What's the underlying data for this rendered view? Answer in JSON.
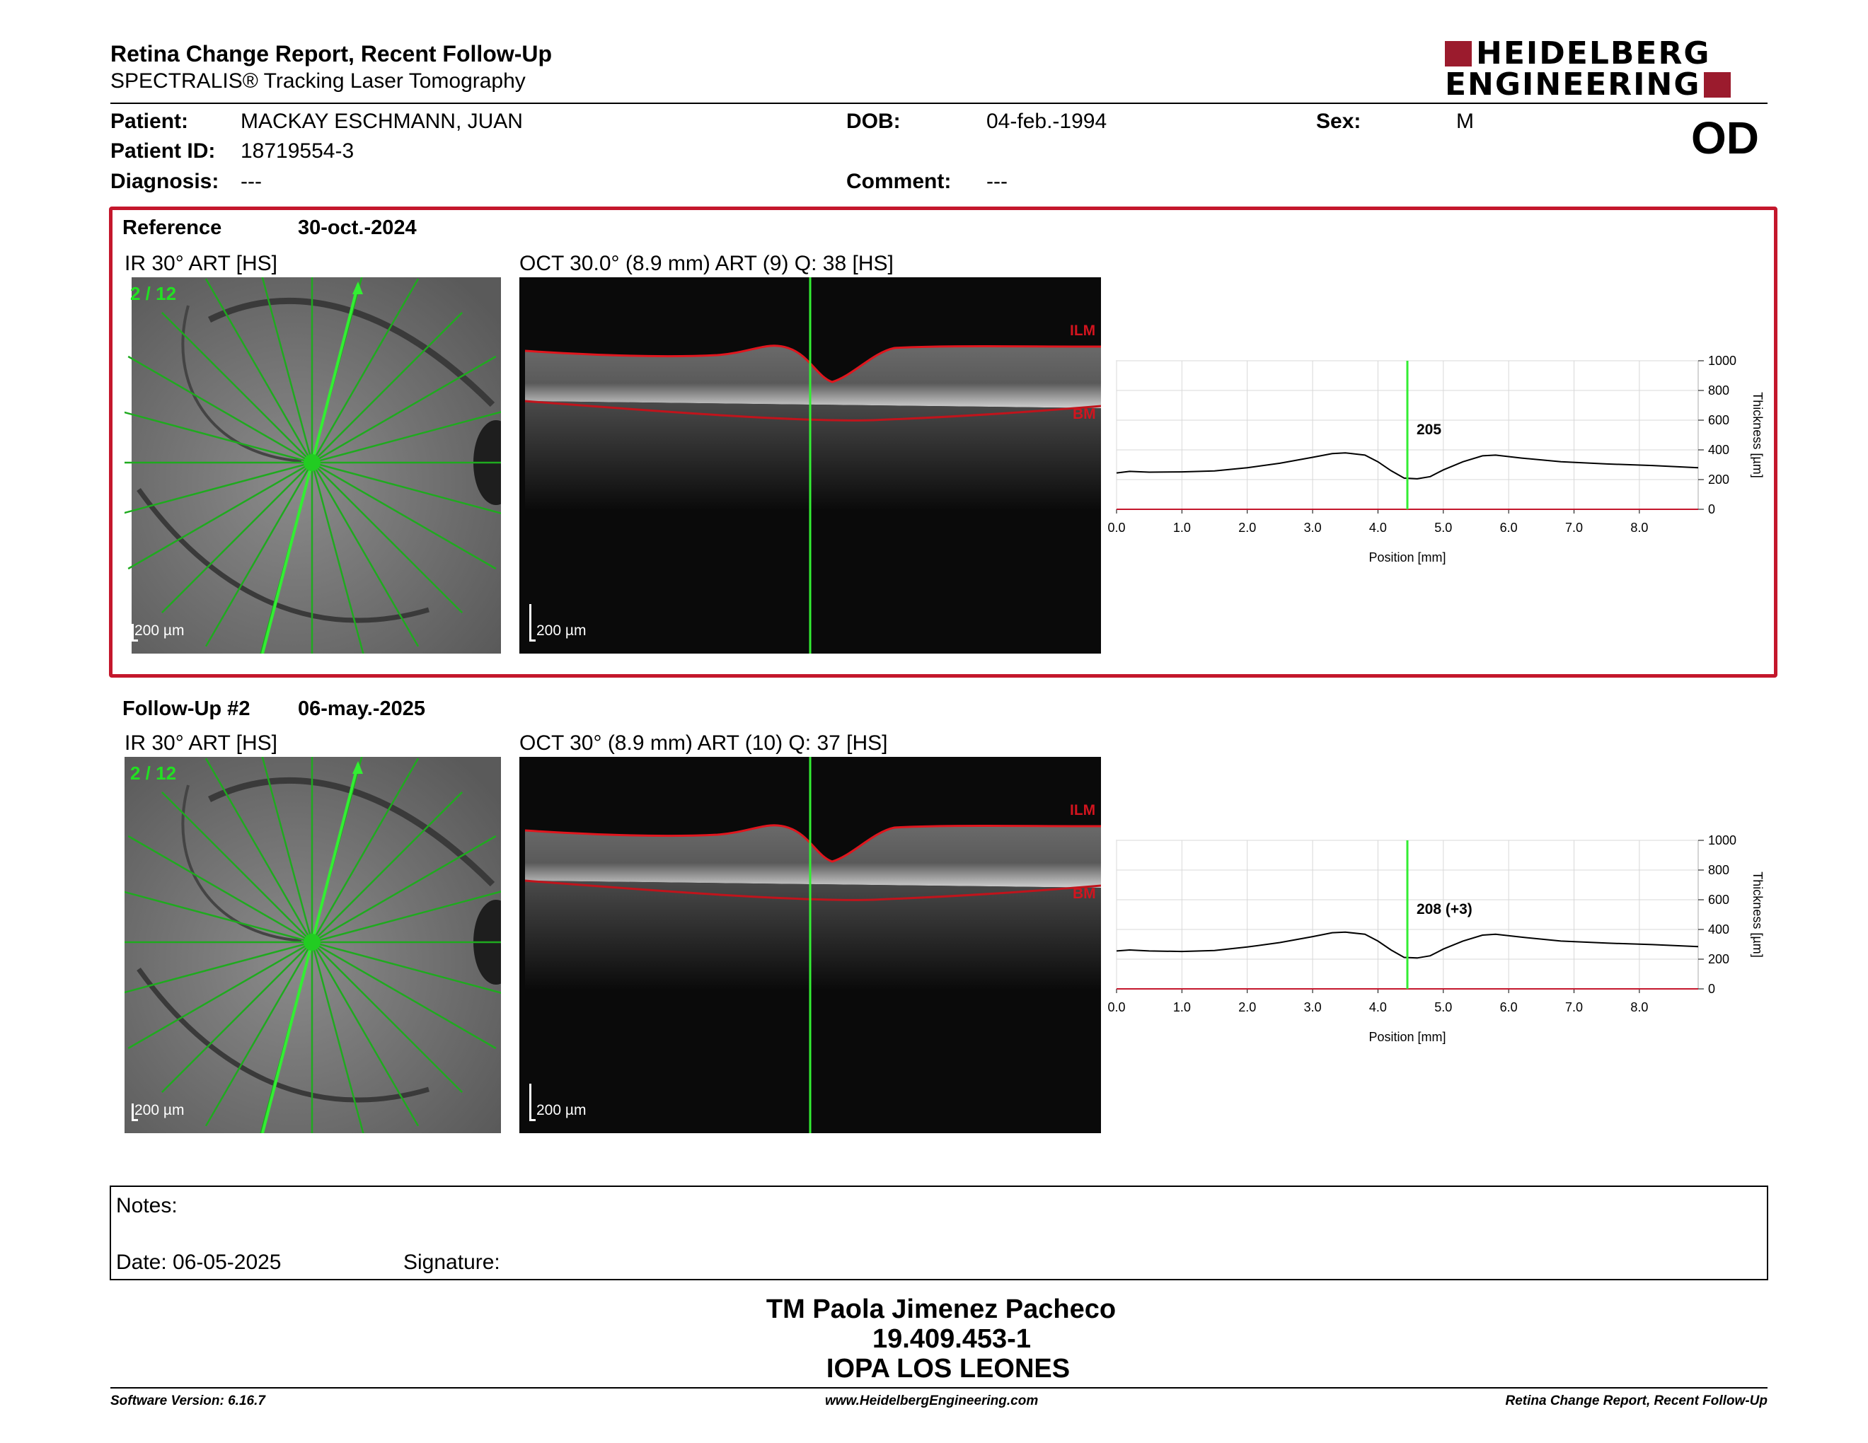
{
  "header": {
    "title": "Retina Change Report, Recent Follow-Up",
    "subtitle": "SPECTRALIS® Tracking Laser Tomography",
    "logo_line1": "HEIDELBERG",
    "logo_line2": "ENGINEERING",
    "brand_color": "#9b1b2d"
  },
  "patient": {
    "patient_label": "Patient:",
    "patient_value": "MACKAY ESCHMANN, JUAN",
    "id_label": "Patient ID:",
    "id_value": "18719554-3",
    "diagnosis_label": "Diagnosis:",
    "diagnosis_value": "---",
    "dob_label": "DOB:",
    "dob_value": "04-feb.-1994",
    "comment_label": "Comment:",
    "comment_value": "---",
    "sex_label": "Sex:",
    "sex_value": "M",
    "eye": "OD"
  },
  "reference": {
    "label": "Reference",
    "date": "30-oct.-2024",
    "ir_caption": "IR 30° ART [HS]",
    "oct_caption": "OCT 30.0° (8.9 mm) ART (9) Q: 38 [HS]",
    "scan_index": "2 / 12",
    "scale": "200 µm",
    "ilm": "ILM",
    "bm": "BM",
    "marker_label": "205",
    "border_color": "#c4172c"
  },
  "followup": {
    "label": "Follow-Up #2",
    "date": "06-may.-2025",
    "ir_caption": "IR 30° ART [HS]",
    "oct_caption": "OCT 30° (8.9 mm) ART (10) Q: 37 [HS]",
    "scan_index": "2 / 12",
    "scale": "200 µm",
    "ilm": "ILM",
    "bm": "BM",
    "marker_label": "208 (+3)"
  },
  "chart_data": [
    {
      "type": "line",
      "xlabel": "Position [mm]",
      "ylabel": "Thickness [µm]",
      "xlim": [
        0,
        8.9
      ],
      "ylim": [
        0,
        1000
      ],
      "x_ticks": [
        "0.0",
        "1.0",
        "2.0",
        "3.0",
        "4.0",
        "5.0",
        "6.0",
        "7.0",
        "8.0"
      ],
      "y_ticks": [
        "0",
        "200",
        "400",
        "600",
        "800",
        "1000"
      ],
      "marker_x": 4.45,
      "marker_value": 205,
      "grid": true,
      "series": [
        {
          "x": [
            0,
            0.2,
            0.5,
            1,
            1.5,
            2,
            2.5,
            3,
            3.3,
            3.5,
            3.8,
            4.0,
            4.2,
            4.4,
            4.6,
            4.8,
            5.0,
            5.3,
            5.6,
            5.8,
            6.2,
            6.8,
            7.5,
            8.2,
            8.9
          ],
          "y": [
            245,
            255,
            250,
            252,
            258,
            280,
            310,
            350,
            375,
            380,
            365,
            320,
            260,
            210,
            205,
            220,
            265,
            320,
            360,
            365,
            345,
            320,
            305,
            295,
            280
          ]
        }
      ]
    },
    {
      "type": "line",
      "xlabel": "Position [mm]",
      "ylabel": "Thickness [µm]",
      "xlim": [
        0,
        8.9
      ],
      "ylim": [
        0,
        1000
      ],
      "x_ticks": [
        "0.0",
        "1.0",
        "2.0",
        "3.0",
        "4.0",
        "5.0",
        "6.0",
        "7.0",
        "8.0"
      ],
      "y_ticks": [
        "0",
        "200",
        "400",
        "600",
        "800",
        "1000"
      ],
      "marker_x": 4.45,
      "marker_value": 208,
      "marker_change": 3,
      "grid": true,
      "series": [
        {
          "x": [
            0,
            0.2,
            0.5,
            1,
            1.5,
            2,
            2.5,
            3,
            3.3,
            3.5,
            3.8,
            4.0,
            4.2,
            4.4,
            4.6,
            4.8,
            5.0,
            5.3,
            5.6,
            5.8,
            6.2,
            6.8,
            7.5,
            8.2,
            8.9
          ],
          "y": [
            255,
            262,
            255,
            252,
            258,
            282,
            312,
            352,
            378,
            382,
            368,
            322,
            262,
            212,
            208,
            223,
            268,
            322,
            362,
            368,
            348,
            322,
            308,
            298,
            285
          ]
        }
      ]
    }
  ],
  "notes": {
    "notes_label": "Notes:",
    "date_label": "Date: 06-05-2025",
    "signature_label": "Signature:"
  },
  "signature": {
    "name": "TM Paola Jimenez Pacheco",
    "rut": "19.409.453-1",
    "institution": "IOPA LOS LEONES"
  },
  "footer": {
    "left": "Software Version: 6.16.7",
    "center": "www.HeidelbergEngineering.com",
    "right": "Retina Change Report, Recent Follow-Up"
  }
}
